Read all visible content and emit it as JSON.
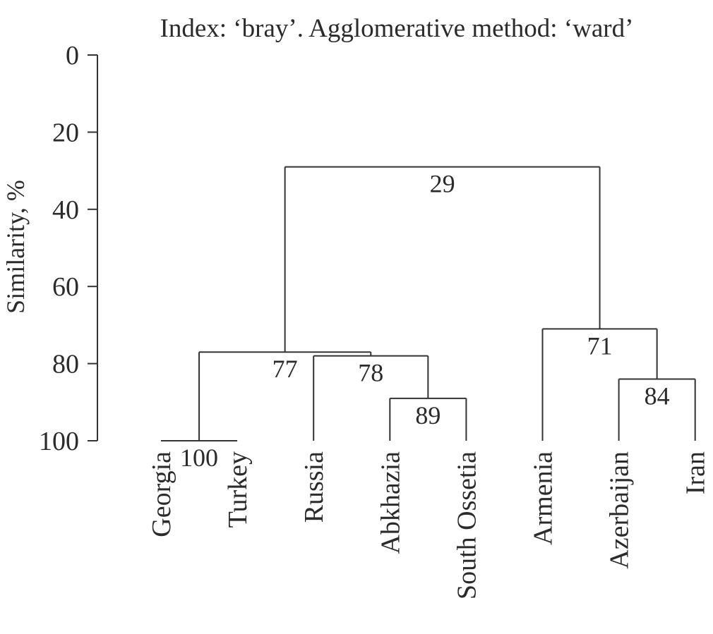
{
  "chart_data": {
    "type": "dendrogram",
    "title": "Index: ‘bray’. Agglomerative method: ‘ward’",
    "y_label": "Similarity, %",
    "ylim": [
      0,
      100
    ],
    "yticks": [
      0,
      20,
      40,
      60,
      80,
      100
    ],
    "tree": {
      "value": 29,
      "children": [
        {
          "value": 77,
          "children": [
            {
              "value": 100,
              "children": [
                "Georgia",
                "Turkey"
              ]
            },
            {
              "value": 78,
              "children": [
                "Russia",
                {
                  "value": 89,
                  "children": [
                    "Abkhazia",
                    "South Ossetia"
                  ]
                }
              ]
            }
          ]
        },
        {
          "value": 71,
          "children": [
            "Armenia",
            {
              "value": 84,
              "children": [
                "Azerbaijan",
                "Iran"
              ]
            }
          ]
        }
      ]
    }
  }
}
